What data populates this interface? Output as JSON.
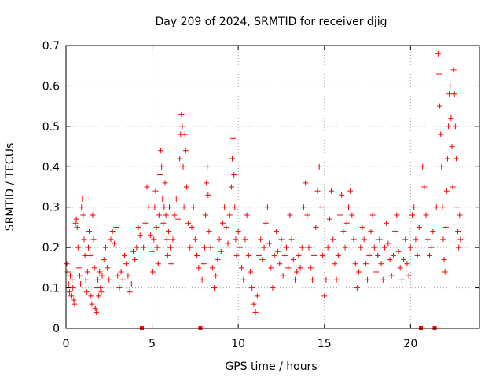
{
  "chart_data": {
    "type": "scatter",
    "title": "Day 209 of 2024, SRMTID for receiver djig",
    "xlabel": "GPS time / hours",
    "ylabel": "SRMTID / TECUs",
    "xlim": [
      0,
      24
    ],
    "ylim": [
      0,
      0.7
    ],
    "xticks": [
      0,
      5,
      10,
      15,
      20
    ],
    "yticks": [
      0,
      0.1,
      0.2,
      0.3,
      0.4,
      0.5,
      0.6,
      0.7
    ],
    "xtick_labels": [
      "0",
      "5",
      "10",
      "15",
      "20"
    ],
    "ytick_labels": [
      "0",
      "0.1",
      "0.2",
      "0.3",
      "0.4",
      "0.5",
      "0.6",
      "0.7"
    ],
    "grid": true,
    "marker": "+",
    "color": "#ff0000",
    "zero_markers_x": [
      4.4,
      7.8,
      20.6,
      21.4
    ],
    "series": [
      {
        "name": "SRMTID",
        "points": [
          [
            0.05,
            0.16
          ],
          [
            0.1,
            0.14
          ],
          [
            0.15,
            0.11
          ],
          [
            0.2,
            0.09
          ],
          [
            0.25,
            0.13
          ],
          [
            0.3,
            0.08
          ],
          [
            0.35,
            0.12
          ],
          [
            0.4,
            0.1
          ],
          [
            0.45,
            0.07
          ],
          [
            0.5,
            0.06
          ],
          [
            0.55,
            0.26
          ],
          [
            0.6,
            0.27
          ],
          [
            0.65,
            0.25
          ],
          [
            0.7,
            0.2
          ],
          [
            0.75,
            0.15
          ],
          [
            0.8,
            0.13
          ],
          [
            0.85,
            0.11
          ],
          [
            0.9,
            0.3
          ],
          [
            0.95,
            0.32
          ],
          [
            1.0,
            0.28
          ],
          [
            1.05,
            0.22
          ],
          [
            1.1,
            0.18
          ],
          [
            1.15,
            0.12
          ],
          [
            1.2,
            0.09
          ],
          [
            1.25,
            0.14
          ],
          [
            1.3,
            0.2
          ],
          [
            1.35,
            0.24
          ],
          [
            1.4,
            0.18
          ],
          [
            1.45,
            0.08
          ],
          [
            1.5,
            0.06
          ],
          [
            1.55,
            0.28
          ],
          [
            1.6,
            0.22
          ],
          [
            1.65,
            0.15
          ],
          [
            1.7,
            0.05
          ],
          [
            1.75,
            0.04
          ],
          [
            1.8,
            0.1
          ],
          [
            1.85,
            0.12
          ],
          [
            1.9,
            0.08
          ],
          [
            1.95,
            0.14
          ],
          [
            2.0,
            0.1
          ],
          [
            2.05,
            0.09
          ],
          [
            2.1,
            0.13
          ],
          [
            2.2,
            0.17
          ],
          [
            2.3,
            0.2
          ],
          [
            2.4,
            0.15
          ],
          [
            2.5,
            0.12
          ],
          [
            2.6,
            0.22
          ],
          [
            2.7,
            0.24
          ],
          [
            2.8,
            0.21
          ],
          [
            2.9,
            0.25
          ],
          [
            3.0,
            0.13
          ],
          [
            3.1,
            0.1
          ],
          [
            3.2,
            0.14
          ],
          [
            3.3,
            0.12
          ],
          [
            3.4,
            0.18
          ],
          [
            3.5,
            0.16
          ],
          [
            3.6,
            0.13
          ],
          [
            3.7,
            0.09
          ],
          [
            3.8,
            0.11
          ],
          [
            3.9,
            0.19
          ],
          [
            4.0,
            0.17
          ],
          [
            4.1,
            0.2
          ],
          [
            4.2,
            0.25
          ],
          [
            4.3,
            0.23
          ],
          [
            4.5,
            0.2
          ],
          [
            4.6,
            0.26
          ],
          [
            4.7,
            0.35
          ],
          [
            4.8,
            0.3
          ],
          [
            4.9,
            0.23
          ],
          [
            5.0,
            0.19
          ],
          [
            5.05,
            0.14
          ],
          [
            5.1,
            0.22
          ],
          [
            5.15,
            0.3
          ],
          [
            5.2,
            0.34
          ],
          [
            5.25,
            0.25
          ],
          [
            5.3,
            0.2
          ],
          [
            5.35,
            0.16
          ],
          [
            5.4,
            0.28
          ],
          [
            5.45,
            0.38
          ],
          [
            5.5,
            0.44
          ],
          [
            5.55,
            0.4
          ],
          [
            5.6,
            0.32
          ],
          [
            5.65,
            0.26
          ],
          [
            5.7,
            0.3
          ],
          [
            5.75,
            0.36
          ],
          [
            5.8,
            0.28
          ],
          [
            5.85,
            0.22
          ],
          [
            5.9,
            0.18
          ],
          [
            5.95,
            0.24
          ],
          [
            6.0,
            0.3
          ],
          [
            6.05,
            0.2
          ],
          [
            6.1,
            0.16
          ],
          [
            6.2,
            0.22
          ],
          [
            6.3,
            0.28
          ],
          [
            6.4,
            0.32
          ],
          [
            6.5,
            0.27
          ],
          [
            6.6,
            0.42
          ],
          [
            6.65,
            0.48
          ],
          [
            6.7,
            0.53
          ],
          [
            6.75,
            0.5
          ],
          [
            6.8,
            0.4
          ],
          [
            6.85,
            0.3
          ],
          [
            6.9,
            0.48
          ],
          [
            6.95,
            0.44
          ],
          [
            7.0,
            0.35
          ],
          [
            7.1,
            0.26
          ],
          [
            7.2,
            0.2
          ],
          [
            7.3,
            0.25
          ],
          [
            7.4,
            0.3
          ],
          [
            7.5,
            0.22
          ],
          [
            7.6,
            0.18
          ],
          [
            7.7,
            0.15
          ],
          [
            7.9,
            0.12
          ],
          [
            8.0,
            0.16
          ],
          [
            8.05,
            0.2
          ],
          [
            8.1,
            0.28
          ],
          [
            8.15,
            0.36
          ],
          [
            8.2,
            0.4
          ],
          [
            8.25,
            0.33
          ],
          [
            8.3,
            0.24
          ],
          [
            8.4,
            0.2
          ],
          [
            8.5,
            0.15
          ],
          [
            8.6,
            0.1
          ],
          [
            8.7,
            0.13
          ],
          [
            8.8,
            0.17
          ],
          [
            8.9,
            0.22
          ],
          [
            9.0,
            0.19
          ],
          [
            9.1,
            0.26
          ],
          [
            9.2,
            0.3
          ],
          [
            9.3,
            0.25
          ],
          [
            9.4,
            0.21
          ],
          [
            9.5,
            0.28
          ],
          [
            9.6,
            0.35
          ],
          [
            9.65,
            0.42
          ],
          [
            9.7,
            0.47
          ],
          [
            9.75,
            0.38
          ],
          [
            9.8,
            0.3
          ],
          [
            9.85,
            0.22
          ],
          [
            9.9,
            0.18
          ],
          [
            10.0,
            0.24
          ],
          [
            10.1,
            0.2
          ],
          [
            10.2,
            0.15
          ],
          [
            10.3,
            0.12
          ],
          [
            10.4,
            0.22
          ],
          [
            10.5,
            0.28
          ],
          [
            10.6,
            0.18
          ],
          [
            10.7,
            0.14
          ],
          [
            10.8,
            0.1
          ],
          [
            10.9,
            0.06
          ],
          [
            11.0,
            0.04
          ],
          [
            11.1,
            0.08
          ],
          [
            11.2,
            0.18
          ],
          [
            11.3,
            0.22
          ],
          [
            11.4,
            0.17
          ],
          [
            11.5,
            0.2
          ],
          [
            11.6,
            0.26
          ],
          [
            11.7,
            0.3
          ],
          [
            11.8,
            0.21
          ],
          [
            11.9,
            0.15
          ],
          [
            12.0,
            0.1
          ],
          [
            12.1,
            0.18
          ],
          [
            12.2,
            0.24
          ],
          [
            12.3,
            0.19
          ],
          [
            12.4,
            0.16
          ],
          [
            12.5,
            0.22
          ],
          [
            12.6,
            0.13
          ],
          [
            12.7,
            0.18
          ],
          [
            12.8,
            0.2
          ],
          [
            12.9,
            0.15
          ],
          [
            13.0,
            0.28
          ],
          [
            13.1,
            0.22
          ],
          [
            13.2,
            0.17
          ],
          [
            13.3,
            0.12
          ],
          [
            13.4,
            0.14
          ],
          [
            13.5,
            0.18
          ],
          [
            13.6,
            0.15
          ],
          [
            13.7,
            0.2
          ],
          [
            13.8,
            0.3
          ],
          [
            13.9,
            0.36
          ],
          [
            14.0,
            0.28
          ],
          [
            14.1,
            0.2
          ],
          [
            14.2,
            0.15
          ],
          [
            14.3,
            0.12
          ],
          [
            14.4,
            0.18
          ],
          [
            14.5,
            0.25
          ],
          [
            14.6,
            0.34
          ],
          [
            14.7,
            0.4
          ],
          [
            14.8,
            0.3
          ],
          [
            14.9,
            0.18
          ],
          [
            15.0,
            0.08
          ],
          [
            15.1,
            0.12
          ],
          [
            15.2,
            0.2
          ],
          [
            15.3,
            0.27
          ],
          [
            15.4,
            0.34
          ],
          [
            15.5,
            0.22
          ],
          [
            15.6,
            0.16
          ],
          [
            15.7,
            0.12
          ],
          [
            15.8,
            0.18
          ],
          [
            15.9,
            0.28
          ],
          [
            16.0,
            0.33
          ],
          [
            16.1,
            0.24
          ],
          [
            16.2,
            0.2
          ],
          [
            16.3,
            0.26
          ],
          [
            16.4,
            0.3
          ],
          [
            16.5,
            0.34
          ],
          [
            16.6,
            0.28
          ],
          [
            16.7,
            0.22
          ],
          [
            16.8,
            0.16
          ],
          [
            16.9,
            0.1
          ],
          [
            17.0,
            0.14
          ],
          [
            17.1,
            0.2
          ],
          [
            17.2,
            0.25
          ],
          [
            17.3,
            0.22
          ],
          [
            17.4,
            0.16
          ],
          [
            17.5,
            0.12
          ],
          [
            17.6,
            0.18
          ],
          [
            17.7,
            0.24
          ],
          [
            17.8,
            0.28
          ],
          [
            17.9,
            0.2
          ],
          [
            18.0,
            0.14
          ],
          [
            18.1,
            0.18
          ],
          [
            18.2,
            0.22
          ],
          [
            18.3,
            0.16
          ],
          [
            18.4,
            0.12
          ],
          [
            18.5,
            0.2
          ],
          [
            18.6,
            0.26
          ],
          [
            18.7,
            0.21
          ],
          [
            18.8,
            0.17
          ],
          [
            18.9,
            0.13
          ],
          [
            19.0,
            0.18
          ],
          [
            19.1,
            0.24
          ],
          [
            19.2,
            0.28
          ],
          [
            19.3,
            0.19
          ],
          [
            19.4,
            0.15
          ],
          [
            19.5,
            0.12
          ],
          [
            19.6,
            0.17
          ],
          [
            19.7,
            0.22
          ],
          [
            19.8,
            0.16
          ],
          [
            19.9,
            0.13
          ],
          [
            20.0,
            0.2
          ],
          [
            20.1,
            0.28
          ],
          [
            20.2,
            0.3
          ],
          [
            20.3,
            0.22
          ],
          [
            20.4,
            0.18
          ],
          [
            20.5,
            0.25
          ],
          [
            20.7,
            0.4
          ],
          [
            20.8,
            0.35
          ],
          [
            20.9,
            0.28
          ],
          [
            21.0,
            0.22
          ],
          [
            21.1,
            0.18
          ],
          [
            21.2,
            0.2
          ],
          [
            21.3,
            0.24
          ],
          [
            21.5,
            0.3
          ],
          [
            21.6,
            0.68
          ],
          [
            21.65,
            0.63
          ],
          [
            21.7,
            0.55
          ],
          [
            21.75,
            0.48
          ],
          [
            21.8,
            0.4
          ],
          [
            21.85,
            0.3
          ],
          [
            21.9,
            0.22
          ],
          [
            21.95,
            0.17
          ],
          [
            22.0,
            0.14
          ],
          [
            22.05,
            0.25
          ],
          [
            22.1,
            0.34
          ],
          [
            22.15,
            0.42
          ],
          [
            22.2,
            0.5
          ],
          [
            22.25,
            0.58
          ],
          [
            22.3,
            0.6
          ],
          [
            22.35,
            0.52
          ],
          [
            22.4,
            0.45
          ],
          [
            22.45,
            0.35
          ],
          [
            22.5,
            0.64
          ],
          [
            22.55,
            0.58
          ],
          [
            22.6,
            0.5
          ],
          [
            22.65,
            0.42
          ],
          [
            22.7,
            0.3
          ],
          [
            22.75,
            0.24
          ],
          [
            22.8,
            0.2
          ],
          [
            22.85,
            0.28
          ],
          [
            22.9,
            0.22
          ]
        ]
      }
    ]
  }
}
